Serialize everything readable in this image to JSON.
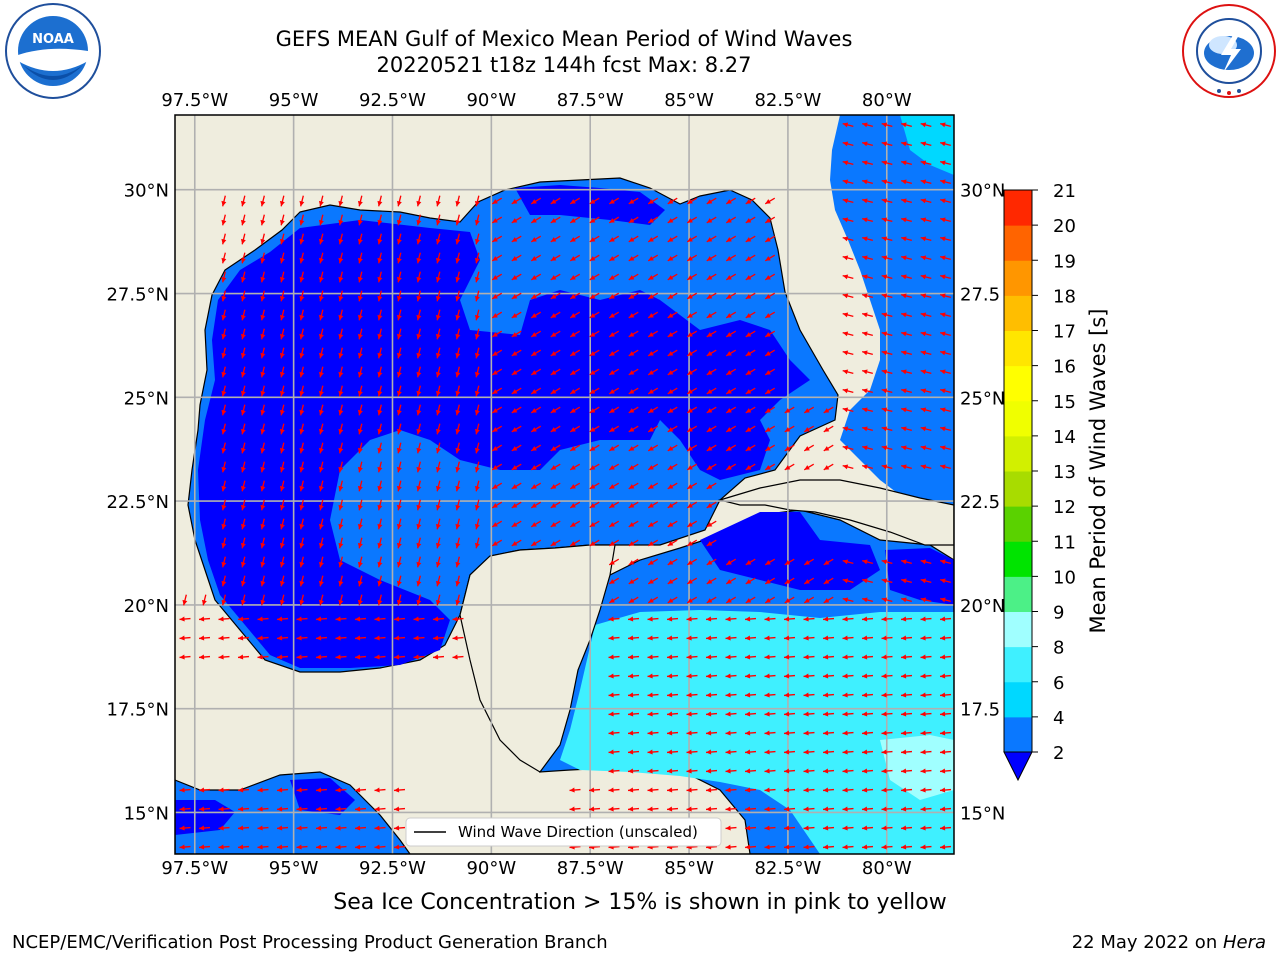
{
  "header": {
    "title_line1": "GEFS MEAN Gulf of Mexico Mean Period of Wind Waves",
    "title_line2": "20220521 t18z 144h fcst   Max: 8.27"
  },
  "logos": {
    "left": {
      "name": "noaa-logo",
      "text": "NOAA"
    },
    "right": {
      "name": "nws-logo",
      "text": "NATIONAL WEATHER SERVICE"
    }
  },
  "map": {
    "lon_labels": [
      "97.5°W",
      "95°W",
      "92.5°W",
      "90°W",
      "87.5°W",
      "85°W",
      "82.5°W",
      "80°W"
    ],
    "lon_values": [
      -97.5,
      -95,
      -92.5,
      -90,
      -87.5,
      -85,
      -82.5,
      -80
    ],
    "lat_labels_left": [
      "30°N",
      "27.5°N",
      "25°N",
      "22.5°N",
      "20°N",
      "17.5°N",
      "15°N"
    ],
    "lat_labels_right": [
      "30°N",
      "27.5",
      "25°N",
      "22.5",
      "20°N",
      "17.5",
      "15°N"
    ],
    "lat_values": [
      30,
      27.5,
      25,
      22.5,
      20,
      17.5,
      15
    ],
    "lon_range": [
      -98,
      -78.3
    ],
    "lat_range": [
      14,
      31.8
    ],
    "land_color": "#efedde",
    "arrow_color": "#ff0000",
    "legend_label": "Wind Wave Direction (unscaled)"
  },
  "colorbar": {
    "label": "Mean Period of Wind Waves [s]",
    "ticks": [
      "2",
      "4",
      "6",
      "8",
      "9",
      "10",
      "11",
      "12",
      "13",
      "14",
      "15",
      "16",
      "17",
      "18",
      "19",
      "20",
      "21"
    ],
    "colors": [
      "#0a78ff",
      "#00d8ff",
      "#3ff0ff",
      "#a0ffff",
      "#4cf087",
      "#00e400",
      "#5ad200",
      "#a8dc00",
      "#d2f000",
      "#f0ff00",
      "#ffff00",
      "#ffe600",
      "#ffbe00",
      "#ff9600",
      "#ff6400",
      "#ff2800"
    ],
    "under_color": "#0000ff"
  },
  "caption": "Sea Ice Concentration > 15% is shown in pink to yellow",
  "footer": {
    "left": "NCEP/EMC/Verification Post Processing Product Generation Branch",
    "right_prefix": "22 May 2022 on ",
    "right_host": "Hera"
  }
}
